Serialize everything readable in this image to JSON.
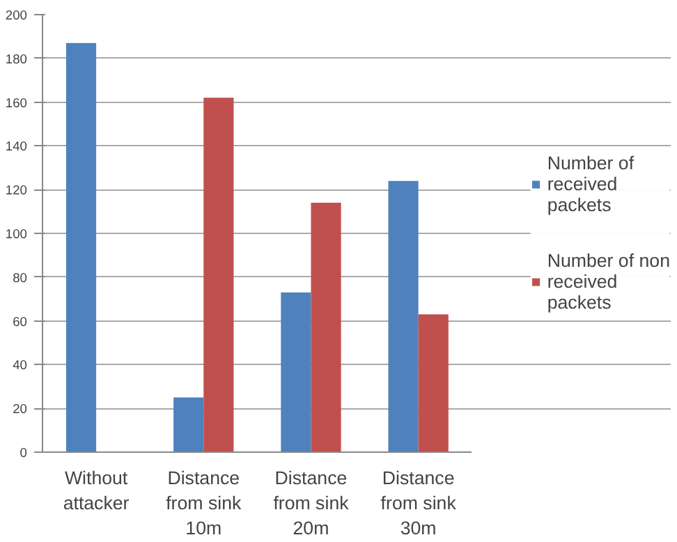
{
  "chart_data": {
    "type": "bar",
    "categories": [
      "Without\nattacker",
      "Distance\nfrom sink\n10m",
      "Distance\nfrom sink\n20m",
      "Distance\nfrom sink\n30m"
    ],
    "series": [
      {
        "name": "Number of\nreceived\npackets",
        "color": "#4f81bd",
        "values": [
          187,
          25,
          73,
          124
        ]
      },
      {
        "name": "Number of non\nreceived\npackets",
        "color": "#c0504d",
        "values": [
          null,
          162,
          114,
          63
        ]
      }
    ],
    "ylim": [
      0,
      200
    ],
    "yticks": [
      0,
      20,
      40,
      60,
      80,
      100,
      120,
      140,
      160,
      180,
      200
    ],
    "grid": "y",
    "legend": "right"
  }
}
